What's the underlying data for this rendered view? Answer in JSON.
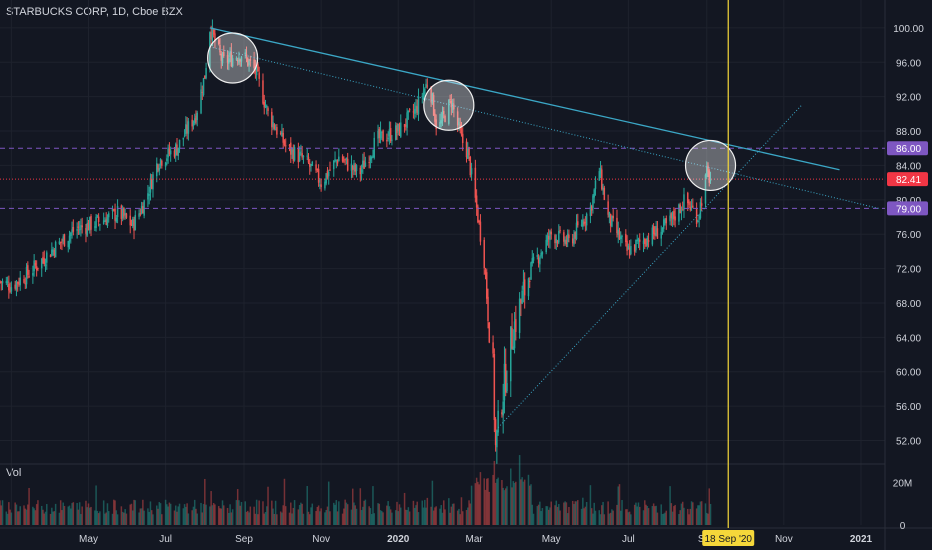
{
  "header": {
    "title": "STARBUCKS CORP, 1D, Cboe BZX"
  },
  "volume_panel": {
    "label": "Vol",
    "ticks": [
      "20M",
      "0"
    ]
  },
  "colors": {
    "background": "#131722",
    "up": "#26a69a",
    "down": "#ef5350",
    "trendline": "#3ba7c6",
    "level": "#7e57c2",
    "last_price": "#f23645",
    "vertical_marker": "#f5d73a"
  },
  "chart_data": {
    "type": "candlestick",
    "symbol": "STARBUCKS CORP",
    "interval": "1D",
    "exchange": "Cboe BZX",
    "y_axis": {
      "ticks": [
        "100.00",
        "96.00",
        "92.00",
        "88.00",
        "84.00",
        "80.00",
        "76.00",
        "72.00",
        "68.00",
        "64.00",
        "60.00",
        "56.00",
        "52.00"
      ],
      "range": [
        49.5,
        101.5
      ]
    },
    "x_axis": {
      "ticks": [
        "Mar",
        "May",
        "Jul",
        "Sep",
        "Nov",
        "2020",
        "Mar",
        "May",
        "Jul",
        "Sep",
        "Nov",
        "2021"
      ],
      "range": [
        "2019-02-20",
        "2021-01-20"
      ]
    },
    "price_path": [
      [
        "2019-02-20",
        70.5
      ],
      [
        "2019-03-01",
        70.0
      ],
      [
        "2019-03-15",
        71.5
      ],
      [
        "2019-04-01",
        74.0
      ],
      [
        "2019-04-20",
        76.5
      ],
      [
        "2019-05-10",
        77.5
      ],
      [
        "2019-05-25",
        78.5
      ],
      [
        "2019-06-05",
        77.0
      ],
      [
        "2019-06-15",
        80.0
      ],
      [
        "2019-06-25",
        84.5
      ],
      [
        "2019-07-10",
        86.0
      ],
      [
        "2019-07-25",
        90.0
      ],
      [
        "2019-08-01",
        94.5
      ],
      [
        "2019-08-05",
        100.0
      ],
      [
        "2019-08-15",
        96.0
      ],
      [
        "2019-08-30",
        97.0
      ],
      [
        "2019-09-10",
        95.0
      ],
      [
        "2019-09-20",
        90.0
      ],
      [
        "2019-10-05",
        86.0
      ],
      [
        "2019-10-20",
        84.5
      ],
      [
        "2019-11-01",
        82.0
      ],
      [
        "2019-11-15",
        85.0
      ],
      [
        "2019-12-01",
        83.0
      ],
      [
        "2019-12-15",
        87.0
      ],
      [
        "2020-01-01",
        88.0
      ],
      [
        "2020-01-15",
        90.5
      ],
      [
        "2020-01-25",
        94.0
      ],
      [
        "2020-02-01",
        88.0
      ],
      [
        "2020-02-12",
        91.5
      ],
      [
        "2020-02-20",
        87.0
      ],
      [
        "2020-02-25",
        85.5
      ],
      [
        "2020-03-03",
        79.0
      ],
      [
        "2020-03-09",
        73.0
      ],
      [
        "2020-03-16",
        60.0
      ],
      [
        "2020-03-18",
        51.0
      ],
      [
        "2020-03-23",
        57.0
      ],
      [
        "2020-04-01",
        65.0
      ],
      [
        "2020-04-15",
        72.0
      ],
      [
        "2020-05-01",
        76.0
      ],
      [
        "2020-05-15",
        75.0
      ],
      [
        "2020-06-01",
        79.0
      ],
      [
        "2020-06-08",
        83.5
      ],
      [
        "2020-06-15",
        78.0
      ],
      [
        "2020-06-30",
        74.0
      ],
      [
        "2020-07-15",
        75.5
      ],
      [
        "2020-08-01",
        77.0
      ],
      [
        "2020-08-15",
        80.0
      ],
      [
        "2020-08-25",
        78.0
      ],
      [
        "2020-09-01",
        83.0
      ],
      [
        "2020-09-04",
        82.41
      ]
    ],
    "last_price": 82.41,
    "levels": [
      86.0,
      79.0
    ],
    "trendlines": [
      {
        "style": "solid",
        "from": [
          "2019-08-05",
          100.0
        ],
        "to": [
          "2020-12-15",
          83.5
        ]
      },
      {
        "style": "dotted",
        "from": [
          "2019-08-05",
          97.8
        ],
        "to": [
          "2021-01-15",
          79.0
        ]
      },
      {
        "style": "dotted",
        "from": [
          "2020-03-20",
          53.5
        ],
        "to": [
          "2020-11-15",
          91.0
        ]
      }
    ],
    "circles": [
      {
        "date": "2019-08-23",
        "price": 96.5
      },
      {
        "date": "2020-02-10",
        "price": 91.0
      },
      {
        "date": "2020-09-04",
        "price": 84.0
      }
    ],
    "vertical_marker": {
      "date": "2020-09-18",
      "label": "18 Sep '20"
    },
    "price_labels": [
      "86.00",
      "82.41",
      "79.00"
    ],
    "volume_scale": {
      "max": 26
    }
  }
}
